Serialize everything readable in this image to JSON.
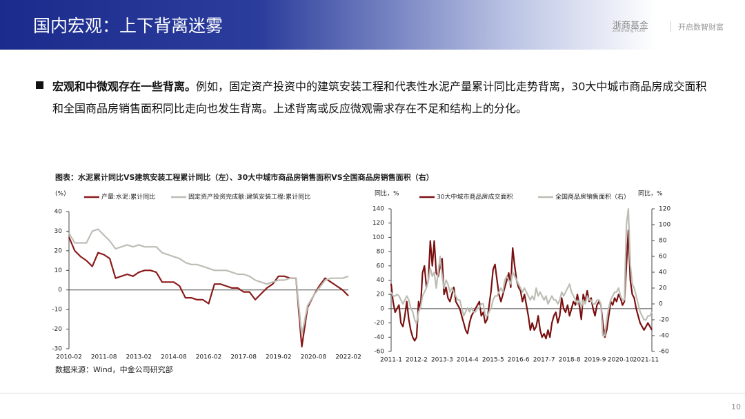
{
  "header": {
    "title": "国内宏观：上下背离迷雾",
    "logo": "浙商基金",
    "logo_en": "ZheShang Fund",
    "slogan": "开启数智财富"
  },
  "body": {
    "bold": "宏观和中微观存在一些背离。",
    "rest": "例如，固定资产投资中的建筑安装工程和代表性水泥产量累计同比走势背离，30大中城市商品房成交面积和全国商品房销售面积同比走向也发生背离。上述背离或反应微观需求存在不足和结构上的分化。"
  },
  "figure_title": "图表：水泥累计同比VS建筑安装工程累计同比（左）、30大中城市商品房销售面积VS全国商品房销售面积（右）",
  "source": "数据来源：Wind，中金公司研究部",
  "page_number": "10",
  "chart_data": [
    {
      "type": "line",
      "ylabel": "(%)",
      "categories": [
        "2010-02",
        null,
        null,
        null,
        null,
        null,
        "2011-08",
        null,
        null,
        null,
        null,
        null,
        "2013-02",
        null,
        null,
        null,
        null,
        null,
        "2014-08",
        null,
        null,
        null,
        null,
        null,
        "2016-02",
        null,
        null,
        null,
        null,
        null,
        "2017-08",
        null,
        null,
        null,
        null,
        null,
        "2019-02",
        null,
        null,
        null,
        null,
        null,
        "2020-08",
        null,
        null,
        null,
        null,
        null,
        "2022-02"
      ],
      "series": [
        {
          "name": "产量:水泥:累计同比",
          "color": "#8b1a1a",
          "values": [
            27,
            20,
            17,
            15,
            12,
            19,
            18,
            16,
            6,
            7,
            8,
            7,
            9,
            10,
            10,
            9,
            4,
            4,
            4,
            2,
            -4,
            -4,
            -5,
            -5,
            -7,
            3,
            3,
            2,
            1,
            1,
            -1,
            -1,
            -5,
            -2,
            1,
            3,
            7,
            7,
            6,
            6,
            -29,
            -9,
            -3,
            2,
            6,
            4,
            2,
            0,
            -3
          ]
        },
        {
          "name": "固定资产投资完成额:建筑安装工程:累计同比",
          "color": "#bdbdb5",
          "values": [
            29,
            24,
            24,
            24,
            30,
            31,
            28,
            25,
            21,
            22,
            23,
            22,
            23,
            22,
            22,
            22,
            19,
            18,
            17,
            16,
            14,
            13,
            13,
            12,
            11,
            10,
            10,
            10,
            9,
            8,
            8,
            7,
            5,
            4,
            3,
            4,
            5,
            5,
            6,
            6,
            -23,
            -8,
            -3,
            1,
            5,
            6,
            6,
            6,
            7
          ]
        }
      ],
      "ylim": [
        -30,
        40
      ],
      "yticks": [
        -30,
        -20,
        -10,
        0,
        10,
        20,
        30,
        40
      ],
      "grid": false
    },
    {
      "type": "line",
      "ylabel": "同比，%",
      "y2label": "同比，%",
      "categories": [
        "2011-1",
        null,
        null,
        null,
        null,
        null,
        null,
        null,
        null,
        null,
        null,
        null,
        null,
        "2012-2",
        null,
        null,
        null,
        null,
        null,
        null,
        null,
        null,
        null,
        null,
        null,
        null,
        "2013-3",
        null,
        null,
        null,
        null,
        null,
        null,
        null,
        null,
        null,
        null,
        null,
        null,
        "2014-4",
        null,
        null,
        null,
        null,
        null,
        null,
        null,
        null,
        null,
        null,
        null,
        null,
        "2015-5",
        null,
        null,
        null,
        null,
        null,
        null,
        null,
        null,
        null,
        null,
        null,
        null,
        "2016-6",
        null,
        null,
        null,
        null,
        null,
        null,
        null,
        null,
        null,
        null,
        null,
        null,
        "2017-7",
        null,
        null,
        null,
        null,
        null,
        null,
        null,
        null,
        null,
        null,
        null,
        null,
        "2018-8",
        null,
        null,
        null,
        null,
        null,
        null,
        null,
        null,
        null,
        null,
        null,
        null,
        "2019-9",
        null,
        null,
        null,
        null,
        null,
        null,
        null,
        null,
        null,
        null,
        null,
        null,
        "2020-10",
        null,
        null,
        null,
        null,
        null,
        null,
        null,
        null,
        null,
        null,
        null,
        null,
        "2021-11",
        null,
        null,
        null
      ],
      "series": [
        {
          "name": "30大中城市商品房成交面积",
          "color": "#7a1010",
          "values": [
            35,
            10,
            -5,
            0,
            5,
            -20,
            -25,
            -10,
            10,
            -15,
            -30,
            -40,
            -45,
            -40,
            10,
            0,
            50,
            60,
            30,
            40,
            95,
            60,
            95,
            50,
            45,
            60,
            70,
            20,
            30,
            15,
            10,
            20,
            30,
            10,
            5,
            0,
            -10,
            -20,
            -30,
            -35,
            -20,
            -10,
            -5,
            0,
            5,
            10,
            -10,
            -5,
            -20,
            -15,
            5,
            25,
            55,
            62,
            40,
            20,
            10,
            20,
            30,
            40,
            50,
            30,
            85,
            60,
            40,
            30,
            25,
            10,
            20,
            5,
            -10,
            -30,
            -20,
            -30,
            -25,
            -10,
            -30,
            -40,
            -35,
            -42,
            -30,
            -40,
            -20,
            -10,
            -5,
            -20,
            -10,
            15,
            0,
            -5,
            5,
            -10,
            0,
            10,
            5,
            20,
            5,
            -15,
            20,
            10,
            25,
            10,
            15,
            0,
            -10,
            5,
            10,
            5,
            -20,
            -40,
            -30,
            -10,
            10,
            5,
            15,
            10,
            20,
            15,
            5,
            10,
            60,
            110,
            40,
            20,
            15,
            0,
            -10,
            -20,
            -25,
            -30,
            -25,
            -20,
            -25,
            -30
          ]
        },
        {
          "name": "全国商品房销售面积（右）",
          "color": "#bdbdb5",
          "axis": "y2",
          "values": [
            15,
            10,
            10,
            12,
            10,
            5,
            0,
            5,
            10,
            5,
            -5,
            -10,
            -20,
            -25,
            -10,
            -5,
            10,
            15,
            20,
            30,
            45,
            35,
            40,
            20,
            40,
            60,
            35,
            20,
            30,
            25,
            15,
            20,
            15,
            10,
            5,
            5,
            -5,
            -15,
            -10,
            -5,
            -10,
            -5,
            -10,
            -10,
            -5,
            -5,
            0,
            0,
            -15,
            -15,
            -10,
            -5,
            5,
            10,
            10,
            15,
            20,
            15,
            30,
            35,
            30,
            25,
            40,
            35,
            30,
            25,
            20,
            15,
            20,
            15,
            10,
            5,
            10,
            5,
            20,
            10,
            15,
            10,
            5,
            10,
            0,
            5,
            10,
            5,
            5,
            0,
            5,
            15,
            10,
            15,
            20,
            25,
            15,
            10,
            5,
            0,
            5,
            -5,
            5,
            0,
            10,
            5,
            5,
            0,
            0,
            5,
            5,
            0,
            -40,
            -40,
            -20,
            -5,
            5,
            10,
            15,
            15,
            20,
            10,
            5,
            5,
            100,
            120,
            50,
            25,
            20,
            10,
            0,
            -10,
            -15,
            -20,
            -20,
            -15,
            -15,
            -10
          ]
        }
      ],
      "ylim": [
        -60,
        140
      ],
      "yticks": [
        -60,
        -40,
        -20,
        0,
        20,
        40,
        60,
        80,
        100,
        120,
        140
      ],
      "y2lim": [
        -60,
        120
      ],
      "y2ticks": [
        -60,
        -40,
        -20,
        0,
        20,
        40,
        60,
        80,
        100,
        120
      ],
      "grid": false
    }
  ]
}
